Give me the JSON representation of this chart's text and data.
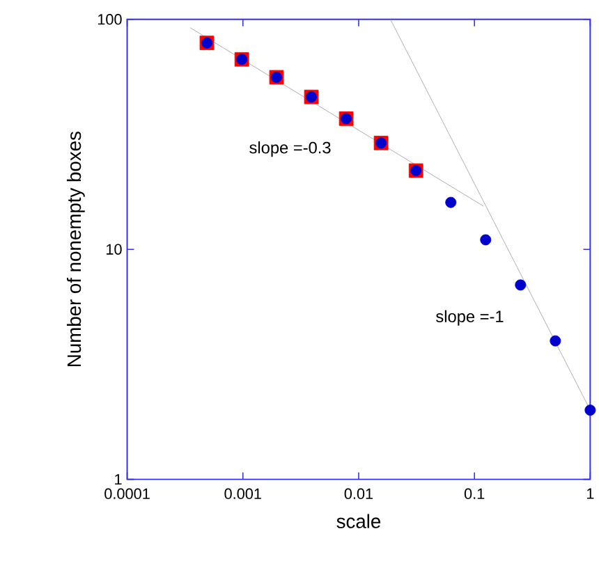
{
  "chart_data": {
    "type": "scatter",
    "xlabel": "scale",
    "ylabel": "Number of nonempty boxes",
    "log": "xy",
    "xlim": [
      0.0001,
      1
    ],
    "ylim": [
      1,
      100
    ],
    "xticks": [
      0.0001,
      0.001,
      0.01,
      0.1,
      1
    ],
    "yticks": [
      1,
      10,
      100
    ],
    "grid": false,
    "series": [
      {
        "marker": "square",
        "color": "#ff0000",
        "x": [
          0.000488,
          0.000977,
          0.00195,
          0.0039,
          0.0078,
          0.0156,
          0.03125
        ],
        "values": [
          79,
          67,
          56,
          46,
          37,
          29,
          22
        ]
      },
      {
        "marker": "circle",
        "color": "#0000cc",
        "x": [
          0.000488,
          0.000977,
          0.00195,
          0.0039,
          0.0078,
          0.0156,
          0.03125,
          0.0625,
          0.125,
          0.25,
          0.5,
          1
        ],
        "values": [
          79,
          67,
          56,
          46,
          37,
          29,
          22,
          16,
          11,
          7,
          4,
          2
        ]
      },
      {
        "type": "line",
        "line_style": "solid",
        "color": "#999999",
        "x": [
          0.00035,
          0.12
        ],
        "values": [
          92,
          15.4
        ]
      },
      {
        "type": "line",
        "line_style": "solid",
        "color": "#999999",
        "x": [
          0.0188,
          1
        ],
        "values": [
          100,
          2
        ]
      }
    ],
    "annotations": [
      "slope =-0.3",
      "slope =-1"
    ]
  }
}
